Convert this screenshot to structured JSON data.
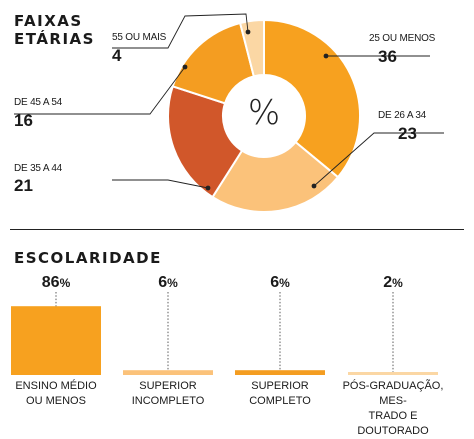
{
  "section1": {
    "title": "FAIXAS\nETÁRIAS",
    "center_symbol": "%"
  },
  "section2": {
    "title": "ESCOLARIDADE"
  },
  "colors": {
    "orange": "#f7a11f",
    "light": "#fbc27a",
    "dark": "#d1572a",
    "mid": "#f49d21",
    "pale": "#fbd7a4"
  },
  "chart_data": [
    {
      "type": "pie",
      "title": "FAIXAS ETÁRIAS",
      "slices": [
        {
          "label": "25 OU MENOS",
          "value": 36,
          "color": "#f7a11f"
        },
        {
          "label": "DE 26 A 34",
          "value": 23,
          "color": "#fbc27a"
        },
        {
          "label": "DE 35 A 44",
          "value": 21,
          "color": "#d1572a"
        },
        {
          "label": "DE 45 A 54",
          "value": 16,
          "color": "#f49d21"
        },
        {
          "label": "55 OU MAIS",
          "value": 4,
          "color": "#fbd7a4"
        }
      ]
    },
    {
      "type": "bar",
      "title": "ESCOLARIDADE",
      "categories": [
        "ENSINO MÉDIO\nOU MENOS",
        "SUPERIOR\nINCOMPLETO",
        "SUPERIOR\nCOMPLETO",
        "PÓS-GRADUAÇÃO, MES-\nTRADO E DOUTORADO"
      ],
      "values": [
        86,
        6,
        6,
        2
      ],
      "value_labels": [
        "86",
        "6",
        "6",
        "2"
      ],
      "unit": "%",
      "colors": [
        "#f7a11f",
        "#fbc27a",
        "#f49d21",
        "#fbd7a4"
      ],
      "ylim": [
        0,
        100
      ]
    }
  ]
}
